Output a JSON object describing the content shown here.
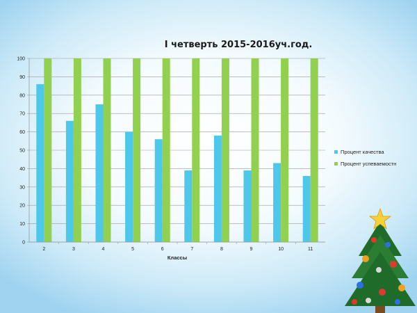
{
  "chart_data": {
    "type": "bar",
    "title": "I четверть 2015-2016уч.год.",
    "xlabel": "Классы",
    "ylabel": "",
    "categories": [
      "2",
      "3",
      "4",
      "5",
      "6",
      "7",
      "8",
      "9",
      "10",
      "11"
    ],
    "ylim": [
      0,
      100
    ],
    "yticks": [
      "0",
      "10",
      "20",
      "30",
      "40",
      "50",
      "60",
      "70",
      "80",
      "90",
      "100"
    ],
    "grid": true,
    "legend_position": "right",
    "series": [
      {
        "name": "Процент качества",
        "color": "#4dc8ea",
        "values": [
          86,
          66,
          75,
          60,
          56,
          39,
          58,
          39,
          43,
          36
        ]
      },
      {
        "name": "Процент успеваемостн",
        "color": "#92d050",
        "values": [
          100,
          100,
          100,
          100,
          100,
          100,
          100,
          100,
          100,
          100
        ]
      }
    ]
  },
  "decoration": {
    "icon": "christmas-tree-icon"
  }
}
